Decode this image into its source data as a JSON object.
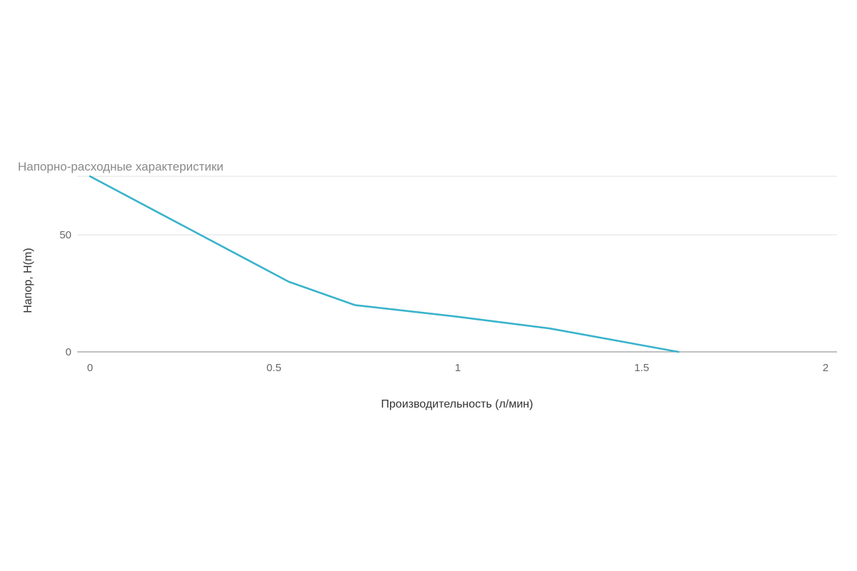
{
  "chart_data": {
    "type": "line",
    "title": "Напорно-расходные характеристики",
    "xlabel": "Производительность (л/мин)",
    "ylabel": "Напор, H(m)",
    "xlim": [
      0,
      2
    ],
    "ylim": [
      0,
      75
    ],
    "x_ticks": [
      "0",
      "0.5",
      "1",
      "1.5",
      "2"
    ],
    "y_ticks": [
      "0",
      "50"
    ],
    "grid": true,
    "legend": "none",
    "series": [
      {
        "color": "#3ab3cc",
        "points": [
          {
            "x": 0,
            "y": 75
          },
          {
            "x": 0.42,
            "y": 40
          },
          {
            "x": 0.54,
            "y": 30
          },
          {
            "x": 0.72,
            "y": 20
          },
          {
            "x": 1.0,
            "y": 15
          },
          {
            "x": 1.25,
            "y": 10
          },
          {
            "x": 1.6,
            "y": 0
          }
        ]
      }
    ]
  }
}
